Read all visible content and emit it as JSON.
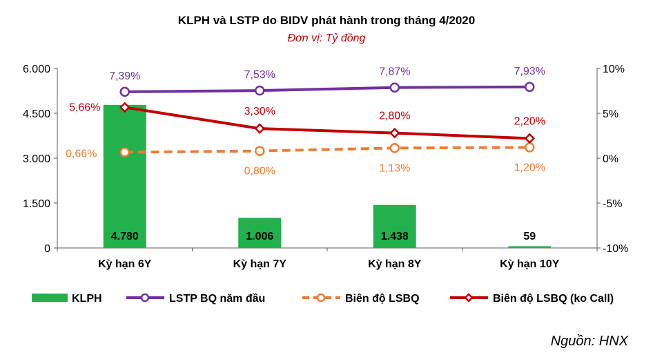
{
  "title": "KLPH và LSTP do BIDV phát hành trong tháng 4/2020",
  "subtitle": "Đơn vị: Tỷ đồng",
  "source": "Nguồn: HNX",
  "colors": {
    "bar": "#22b14c",
    "lstp": "#7030a0",
    "bien_do": "#ed7d31",
    "bien_do_ko_call": "#c00000",
    "subtitle": "#c00000",
    "axis": "#595959"
  },
  "chart_data": {
    "type": "bar",
    "categories": [
      "Kỳ hạn 6Y",
      "Kỳ hạn 7Y",
      "Kỳ hạn 8Y",
      "Kỳ hạn 10Y"
    ],
    "y_left": {
      "range": [
        0,
        6000
      ],
      "ticks": [
        0,
        1500,
        3000,
        4500,
        6000
      ],
      "tick_labels": [
        "0",
        "1.500",
        "3.000",
        "4.500",
        "6.000"
      ]
    },
    "y_right": {
      "range": [
        -10,
        10
      ],
      "ticks": [
        -10,
        -5,
        0,
        5,
        10
      ],
      "tick_labels": [
        "-10%",
        "-5%",
        "0%",
        "5%",
        "10%"
      ]
    },
    "series": [
      {
        "name": "KLPH",
        "type": "bar",
        "axis": "left",
        "values": [
          4780,
          1006,
          1438,
          59
        ],
        "labels": [
          "4.780",
          "1.006",
          "1.438",
          "59"
        ]
      },
      {
        "name": "LSTP BQ năm đầu",
        "type": "line",
        "axis": "right",
        "marker": "circle",
        "values": [
          7.39,
          7.53,
          7.87,
          7.93
        ],
        "labels": [
          "7,39%",
          "7,53%",
          "7,87%",
          "7,93%"
        ]
      },
      {
        "name": "Biên độ LSBQ",
        "type": "line",
        "axis": "right",
        "marker": "circle",
        "dashed": true,
        "values": [
          0.66,
          0.8,
          1.13,
          1.2
        ],
        "labels": [
          "0,66%",
          "0,80%",
          "1,13%",
          "1,20%"
        ]
      },
      {
        "name": "Biên độ LSBQ (ko Call)",
        "type": "line",
        "axis": "right",
        "marker": "diamond",
        "values": [
          5.66,
          3.3,
          2.8,
          2.2
        ],
        "labels": [
          "5,66%",
          "3,30%",
          "2,80%",
          "2,20%"
        ]
      }
    ],
    "legend_position": "bottom",
    "grid": false
  }
}
